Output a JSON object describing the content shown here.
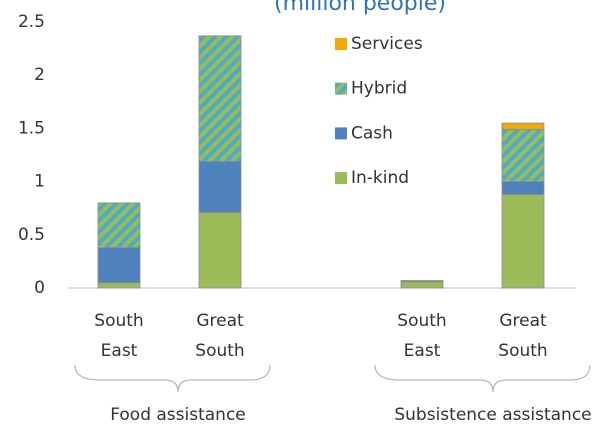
{
  "chart_data": {
    "type": "stacked_bar",
    "title": "(million people)",
    "categories": [
      "South East",
      "Great South",
      "South East",
      "Great South"
    ],
    "groups": [
      "Food assistance",
      "Subsistence assistance"
    ],
    "series": [
      {
        "name": "In-kind",
        "color": "#9bbb59",
        "values": [
          0.05,
          0.71,
          0.06,
          0.88
        ]
      },
      {
        "name": "Cash",
        "color": "#4f81bd",
        "values": [
          0.33,
          0.48,
          0.01,
          0.12
        ]
      },
      {
        "name": "Hybrid",
        "color": "#4bacc6",
        "hatch": "#9bbb59",
        "values": [
          0.42,
          1.18,
          0,
          0.49
        ]
      },
      {
        "name": "Services",
        "color": "#f5a800",
        "values": [
          0,
          0,
          0,
          0.06
        ]
      }
    ],
    "ylim": [
      0,
      2.5
    ],
    "yticks": [
      0,
      0.5,
      1,
      1.5,
      2,
      2.5
    ]
  }
}
